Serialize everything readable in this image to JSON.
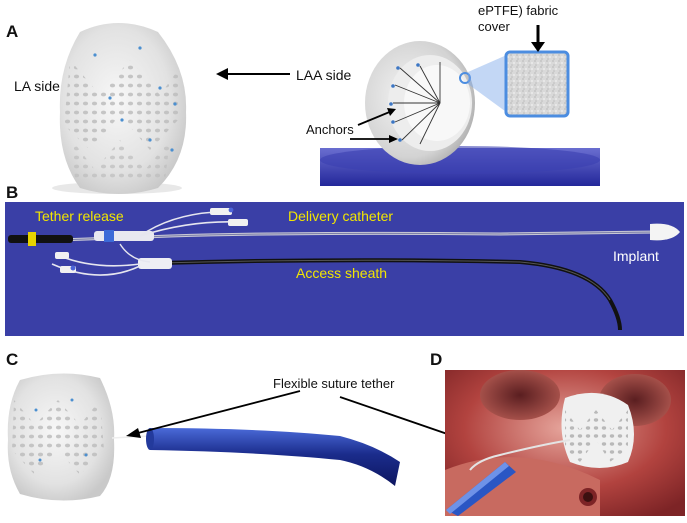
{
  "panels": {
    "a": {
      "letter": "A",
      "la_side": "LA side",
      "laa_side": "LAA side",
      "fabric_cover": "ePTFE) fabric\ncover",
      "anchors": "Anchors"
    },
    "b": {
      "letter": "B",
      "tether_release": "Tether release",
      "delivery_catheter": "Delivery catheter",
      "access_sheath": "Access sheath",
      "implant": "Implant"
    },
    "c": {
      "letter": "C",
      "suture_tether": "Flexible suture tether"
    },
    "d": {
      "letter": "D"
    }
  },
  "colors": {
    "background_blue": "#3a3fa6",
    "label_yellow": "#f2e600",
    "catheter_blue": "#1b2c8c",
    "heart_red": "#b2433f"
  },
  "images": [
    {
      "name": "implant-la-side-photo",
      "alt": "Occluder implant, LA side view"
    },
    {
      "name": "implant-laa-side-photo",
      "alt": "Occluder implant, LAA side with anchors and fabric cover"
    },
    {
      "name": "delivery-system-photo",
      "alt": "Delivery catheter and access sheath on blue background"
    },
    {
      "name": "implant-with-catheter-photo",
      "alt": "Implant attached to blue catheter by suture tether"
    },
    {
      "name": "heart-implant-illustration",
      "alt": "Implant positioned in left atrial appendage"
    }
  ]
}
